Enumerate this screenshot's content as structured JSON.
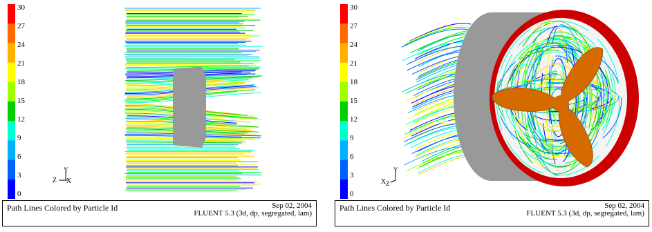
{
  "colorbar": {
    "ticks": [
      "30",
      "27",
      "24",
      "21",
      "18",
      "15",
      "12",
      "9",
      "6",
      "3",
      "0"
    ],
    "colors": [
      "#ff0000",
      "#ff6a00",
      "#ffb000",
      "#ffff00",
      "#a0ff00",
      "#00d000",
      "#00ffd0",
      "#00b0ff",
      "#0060ff",
      "#0000ff"
    ]
  },
  "panels": [
    {
      "caption_left": "Path Lines Colored by Particle Id",
      "caption_date": "Sep 02, 2004",
      "caption_version": "FLUENT 5.3 (3d, dp, segregated, lam)",
      "axis_label": "Z—X  Y"
    },
    {
      "caption_left": "Path Lines Colored by Particle Id",
      "caption_date": "Sep 02, 2004",
      "caption_version": "FLUENT 5.3 (3d, dp, segregated, lam)",
      "axis_label": "XZ  Y"
    }
  ]
}
